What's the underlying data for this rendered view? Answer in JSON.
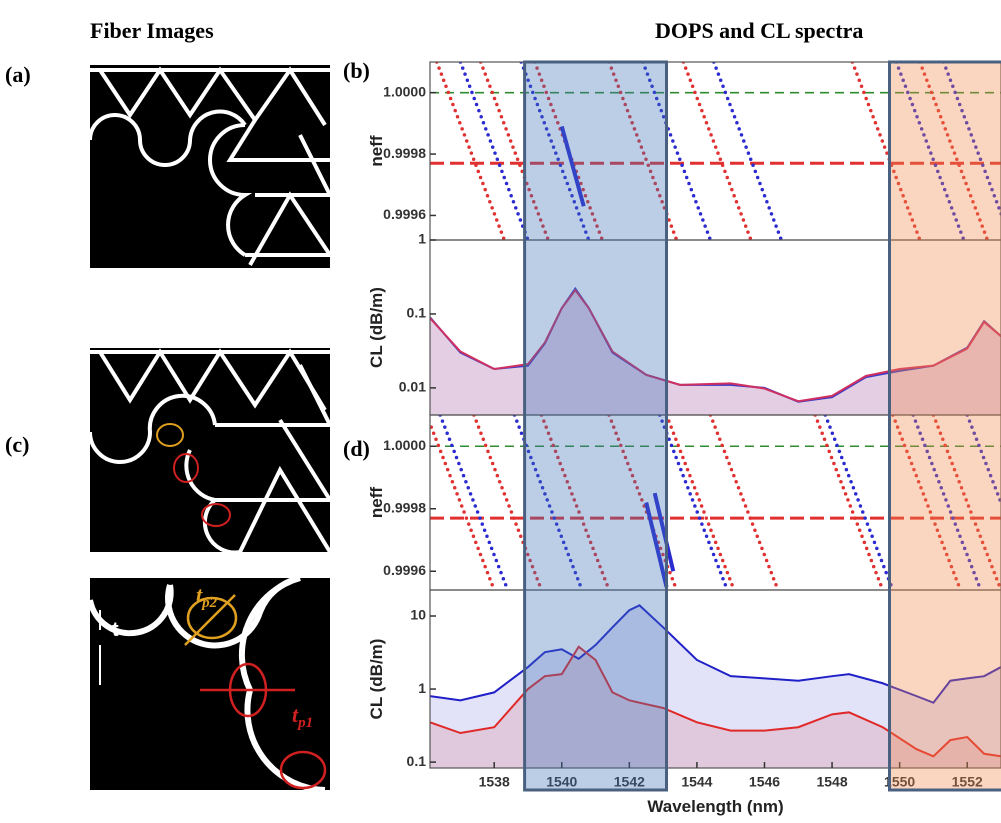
{
  "headers": {
    "fiber_images": "Fiber Images",
    "spectra": "DOPS and CL spectra"
  },
  "panel_labels": [
    "(a)",
    "(b)",
    "(c)",
    "(d)"
  ],
  "fiber_labels": [
    {
      "base": "t"
    },
    {
      "base": "t",
      "sub": "p2"
    },
    {
      "base": "t",
      "sub": "p1"
    }
  ],
  "highlights": [
    {
      "xlim": [
        1538.9,
        1543.1
      ],
      "color": "#3f72b8"
    },
    {
      "xlim": [
        1549.7,
        1553.2
      ],
      "color": "#f08a4b"
    }
  ],
  "chart_data": [
    {
      "type": "line",
      "xlim": [
        1536.1,
        1553.0
      ],
      "ylim": [
        0.99952,
        1.0001
      ],
      "yticks": [
        0.9996,
        0.9998,
        {
          "value": 1.0,
          "label": "1.0000"
        }
      ],
      "ylabel": "neff",
      "series": [
        {
          "color": "#2e8b2e",
          "style": "dashed",
          "x": [
            1536.1,
            1553.0
          ],
          "values": [
            1.0,
            1.0
          ]
        },
        {
          "color": "#e03030",
          "style": "thickdash",
          "x": [
            1536.1,
            1553.0
          ],
          "values": [
            0.99977,
            0.99977
          ]
        },
        {
          "color": "#2a2ad0",
          "style": "dotted",
          "x": [
            1537.0,
            1539.0
          ],
          "values": [
            1.0001,
            0.99952
          ]
        },
        {
          "color": "#2a2ad0",
          "style": "dotted",
          "x": [
            1538.8,
            1540.8
          ],
          "values": [
            1.0001,
            0.99952
          ]
        },
        {
          "color": "#2a2ad0",
          "style": "dotted",
          "x": [
            1542.4,
            1544.4
          ],
          "values": [
            1.0001,
            0.99952
          ]
        },
        {
          "color": "#2a2ad0",
          "style": "dotted",
          "x": [
            1544.5,
            1546.5
          ],
          "values": [
            1.0001,
            0.99952
          ]
        },
        {
          "color": "#2a2ad0",
          "style": "dotted",
          "x": [
            1549.9,
            1551.9
          ],
          "values": [
            1.0001,
            0.99952
          ]
        },
        {
          "color": "#2a2ad0",
          "style": "dotted",
          "x": [
            1551.3,
            1553.3
          ],
          "values": [
            1.0001,
            0.99952
          ]
        },
        {
          "color": "#e03030",
          "style": "dotted",
          "x": [
            1536.3,
            1538.3
          ],
          "values": [
            1.0001,
            0.99952
          ]
        },
        {
          "color": "#e03030",
          "style": "dotted",
          "x": [
            1537.6,
            1539.6
          ],
          "values": [
            1.0001,
            0.99952
          ]
        },
        {
          "color": "#e03030",
          "style": "dotted",
          "x": [
            1539.2,
            1541.2
          ],
          "values": [
            1.0001,
            0.99952
          ]
        },
        {
          "color": "#e03030",
          "style": "dotted",
          "x": [
            1541.4,
            1543.4
          ],
          "values": [
            1.0001,
            0.99952
          ]
        },
        {
          "color": "#e03030",
          "style": "dotted",
          "x": [
            1543.6,
            1545.6
          ],
          "values": [
            1.0001,
            0.99952
          ]
        },
        {
          "color": "#e03030",
          "style": "dotted",
          "x": [
            1548.6,
            1550.6
          ],
          "values": [
            1.0001,
            0.99952
          ]
        },
        {
          "color": "#e03030",
          "style": "dotted",
          "x": [
            1550.6,
            1552.6
          ],
          "values": [
            1.0001,
            0.99952
          ]
        },
        {
          "color": "#2a2ad0",
          "style": "thick",
          "x": [
            1540.0,
            1540.65
          ],
          "values": [
            0.99989,
            0.99963
          ]
        }
      ]
    },
    {
      "type": "line",
      "log_scale": true,
      "fill": true,
      "xlim": [
        1536.1,
        1553.0
      ],
      "ylim": [
        0.0043,
        1
      ],
      "yticks": [
        0.01,
        0.1,
        1
      ],
      "ylabel": "CL (dB/m)",
      "x": [
        1536.1,
        1537,
        1538,
        1539,
        1539.5,
        1540,
        1540.4,
        1540.8,
        1541.5,
        1542.5,
        1543.5,
        1545,
        1546,
        1547,
        1548,
        1549,
        1550,
        1551,
        1552,
        1552.5,
        1553
      ],
      "series": [
        {
          "color": "#3a3ac8",
          "style": "solid",
          "values": [
            0.09,
            0.03,
            0.018,
            0.02,
            0.04,
            0.12,
            0.22,
            0.12,
            0.03,
            0.015,
            0.011,
            0.011,
            0.01,
            0.0065,
            0.0075,
            0.014,
            0.017,
            0.02,
            0.035,
            0.08,
            0.05
          ]
        },
        {
          "color": "#d03060",
          "style": "solid",
          "values": [
            0.088,
            0.031,
            0.018,
            0.021,
            0.041,
            0.12,
            0.21,
            0.12,
            0.031,
            0.015,
            0.011,
            0.0115,
            0.0098,
            0.0066,
            0.0078,
            0.0145,
            0.018,
            0.02,
            0.034,
            0.078,
            0.05
          ]
        }
      ]
    },
    {
      "type": "line",
      "xlim": [
        1536.1,
        1553.0
      ],
      "ylim": [
        0.99954,
        1.0001
      ],
      "yticks": [
        0.9996,
        0.9998,
        {
          "value": 1.0,
          "label": "1.0000"
        }
      ],
      "ylabel": "neff",
      "series": [
        {
          "color": "#2e8b2e",
          "style": "dashed",
          "x": [
            1536.1,
            1553.0
          ],
          "values": [
            1.0,
            1.0
          ]
        },
        {
          "color": "#e03030",
          "style": "thickdash",
          "x": [
            1536.1,
            1553.0
          ],
          "values": [
            0.99977,
            0.99977
          ]
        },
        {
          "color": "#2a2ad0",
          "style": "dotted",
          "x": [
            1536.4,
            1538.4
          ],
          "values": [
            1.0001,
            0.99954
          ]
        },
        {
          "color": "#2a2ad0",
          "style": "dotted",
          "x": [
            1538.6,
            1540.6
          ],
          "values": [
            1.0001,
            0.99954
          ]
        },
        {
          "color": "#2a2ad0",
          "style": "dotted",
          "x": [
            1542.9,
            1544.9
          ],
          "values": [
            1.0001,
            0.99954
          ]
        },
        {
          "color": "#2a2ad0",
          "style": "dotted",
          "x": [
            1547.8,
            1549.8
          ],
          "values": [
            1.0001,
            0.99954
          ]
        },
        {
          "color": "#2a2ad0",
          "style": "dotted",
          "x": [
            1550.4,
            1552.4
          ],
          "values": [
            1.0001,
            0.99954
          ]
        },
        {
          "color": "#2a2ad0",
          "style": "dotted",
          "x": [
            1552.0,
            1554.0
          ],
          "values": [
            1.0001,
            0.99954
          ]
        },
        {
          "color": "#e03030",
          "style": "dotted",
          "x": [
            1536.0,
            1538.0
          ],
          "values": [
            1.0001,
            0.99954
          ]
        },
        {
          "color": "#e03030",
          "style": "dotted",
          "x": [
            1537.4,
            1539.4
          ],
          "values": [
            1.0001,
            0.99954
          ]
        },
        {
          "color": "#e03030",
          "style": "dotted",
          "x": [
            1539.4,
            1541.4
          ],
          "values": [
            1.0001,
            0.99954
          ]
        },
        {
          "color": "#e03030",
          "style": "dotted",
          "x": [
            1541.4,
            1543.4
          ],
          "values": [
            1.0001,
            0.99954
          ]
        },
        {
          "color": "#e03030",
          "style": "dotted",
          "x": [
            1543.1,
            1545.1
          ],
          "values": [
            1.0001,
            0.99954
          ]
        },
        {
          "color": "#e03030",
          "style": "dotted",
          "x": [
            1544.4,
            1546.4
          ],
          "values": [
            1.0001,
            0.99954
          ]
        },
        {
          "color": "#e03030",
          "style": "dotted",
          "x": [
            1547.5,
            1549.5
          ],
          "values": [
            1.0001,
            0.99954
          ]
        },
        {
          "color": "#e03030",
          "style": "dotted",
          "x": [
            1549.8,
            1551.8
          ],
          "values": [
            1.0001,
            0.99954
          ]
        },
        {
          "color": "#e03030",
          "style": "dotted",
          "x": [
            1551.0,
            1553.0
          ],
          "values": [
            1.0001,
            0.99954
          ]
        },
        {
          "color": "#2a2ad0",
          "style": "thick",
          "x": [
            1542.5,
            1543.1
          ],
          "values": [
            0.99982,
            0.99955
          ]
        },
        {
          "color": "#2a2ad0",
          "style": "thick",
          "x": [
            1542.75,
            1543.3
          ],
          "values": [
            0.99985,
            0.9996
          ]
        }
      ]
    },
    {
      "type": "line",
      "log_scale": true,
      "fill": true,
      "xlim": [
        1536.1,
        1553.0
      ],
      "ylim": [
        0.083,
        22.7
      ],
      "yticks": [
        0.1,
        1,
        10
      ],
      "ylabel": "CL (dB/m)",
      "xticks": [
        1538,
        1540,
        1542,
        1544,
        1546,
        1548,
        1550,
        1552
      ],
      "xlabel": "Wavelength (nm)",
      "x": [
        1536.1,
        1537,
        1538,
        1539,
        1539.5,
        1540,
        1540.5,
        1541,
        1541.5,
        1542,
        1542.3,
        1543,
        1544,
        1545,
        1546,
        1547,
        1548,
        1548.5,
        1549.5,
        1550.5,
        1551,
        1551.5,
        1552,
        1552.5,
        1553
      ],
      "series": [
        {
          "color": "#2020c8",
          "style": "solid",
          "values": [
            0.8,
            0.7,
            0.9,
            2.0,
            3.2,
            3.5,
            2.6,
            4.0,
            7.0,
            12,
            14,
            7.0,
            2.5,
            1.5,
            1.4,
            1.3,
            1.5,
            1.6,
            1.2,
            0.8,
            0.65,
            1.3,
            1.4,
            1.5,
            2.0
          ]
        },
        {
          "color": "#e02828",
          "style": "solid",
          "values": [
            0.35,
            0.25,
            0.3,
            1.0,
            1.5,
            1.6,
            3.8,
            2.5,
            0.9,
            0.7,
            0.65,
            0.55,
            0.35,
            0.27,
            0.27,
            0.3,
            0.45,
            0.48,
            0.3,
            0.15,
            0.12,
            0.2,
            0.22,
            0.13,
            0.12
          ]
        }
      ]
    }
  ]
}
